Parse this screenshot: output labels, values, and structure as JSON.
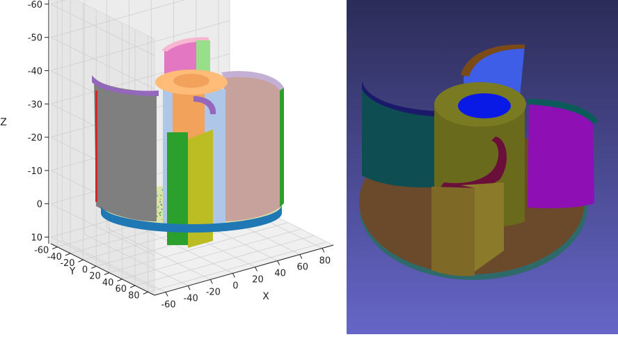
{
  "chart_data": {
    "type": "scatter",
    "title": "",
    "xlabel": "X",
    "ylabel": "Y",
    "zlabel": "Z",
    "x_ticks": [
      "-60",
      "-40",
      "-20",
      "0",
      "20",
      "40",
      "60",
      "80"
    ],
    "y_ticks": [
      "-60",
      "-40",
      "-20",
      "0",
      "20",
      "40",
      "60",
      "80"
    ],
    "z_ticks": [
      "-60",
      "-50",
      "-40",
      "-30",
      "-20",
      "-10",
      "0",
      "10"
    ],
    "xlim": [
      -70,
      90
    ],
    "ylim": [
      -70,
      90
    ],
    "zlim": [
      -65,
      12
    ],
    "z_inverted": true,
    "grid": true,
    "legend": "none",
    "series": [
      {
        "color": "#1f77b4"
      },
      {
        "color": "#bcbd22"
      },
      {
        "color": "#2ca02c"
      },
      {
        "color": "#ffbb78"
      },
      {
        "color": "#9467bd"
      },
      {
        "color": "#e377c2"
      },
      {
        "color": "#8c564b"
      },
      {
        "color": "#aec7e8"
      },
      {
        "color": "#7f7f7f"
      },
      {
        "color": "#d62728"
      }
    ]
  },
  "render_colors": {
    "background_top": "#2c2c58",
    "background_bottom": "#6666c8",
    "base_disk": "#6b4a2c",
    "base_rim": "#2e6a6a",
    "teal_blade": "#0e4d52",
    "teal_blade_edge": "#1a1a6a",
    "magenta_blade": "#8e0fb4",
    "magenta_blade_top": "#0d5a5a",
    "olive_column": "#6a6a1c",
    "blue_bore": "#0a1ae6",
    "blue_blade": "#3e5ee8",
    "blue_blade_top": "#7a4a18",
    "maroon_inner": "#6a0f3a"
  }
}
